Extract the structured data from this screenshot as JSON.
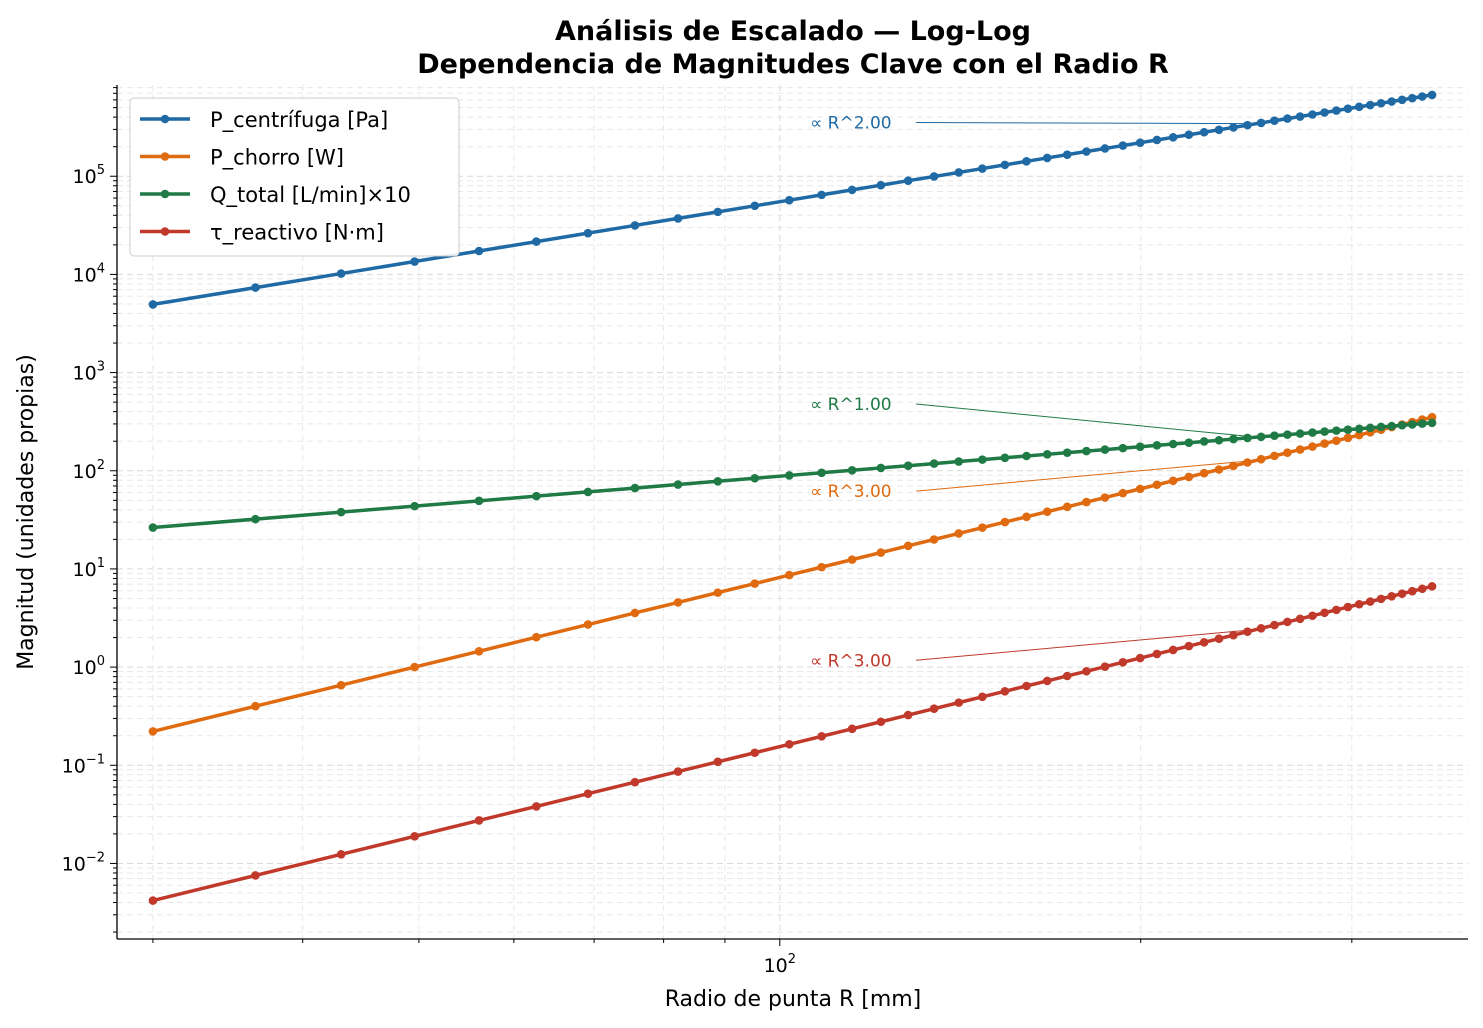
{
  "chart_data": {
    "type": "line",
    "scale": "log-log",
    "title": "Análisis de Escalado — Log-Log",
    "subtitle": "Dependencia de Magnitudes Clave con el Radio R",
    "xlabel": "Radio de punta  R  [mm]",
    "ylabel": "Magnitud (unidades propias)",
    "xlim": [
      28,
      375
    ],
    "ylim": [
      0.0017,
      850000
    ],
    "x_ticks": [
      {
        "value": 100,
        "base": "10",
        "exp": "2"
      }
    ],
    "y_ticks": [
      {
        "value": 0.01,
        "base": "10",
        "exp": "−2"
      },
      {
        "value": 0.1,
        "base": "10",
        "exp": "−1"
      },
      {
        "value": 1,
        "base": "10",
        "exp": "0"
      },
      {
        "value": 10,
        "base": "10",
        "exp": "1"
      },
      {
        "value": 100,
        "base": "10",
        "exp": "2"
      },
      {
        "value": 1000,
        "base": "10",
        "exp": "3"
      },
      {
        "value": 10000,
        "base": "10",
        "exp": "4"
      },
      {
        "value": 100000,
        "base": "10",
        "exp": "5"
      }
    ],
    "grid": true,
    "legend_position": "top-left",
    "x_range": {
      "start": 30,
      "stop": 350,
      "points": 50
    },
    "series": [
      {
        "name": "P_centrífuga [Pa]",
        "color": "#1f6aa5",
        "coef": 5.5,
        "exponent": 2,
        "annotation": "∝ R^2.00"
      },
      {
        "name": "P_chorro [W]",
        "color": "#e06a10",
        "coef": 8.2e-06,
        "exponent": 3,
        "annotation": "∝ R^3.00"
      },
      {
        "name": "Q_total [L/min]×10",
        "color": "#1f7a45",
        "coef": 0.88,
        "exponent": 1,
        "annotation": "∝ R^1.00"
      },
      {
        "name": "τ_reactivo [N·m]",
        "color": "#c0392b",
        "coef": 1.55e-07,
        "exponent": 3,
        "annotation": "∝ R^3.00"
      }
    ]
  }
}
